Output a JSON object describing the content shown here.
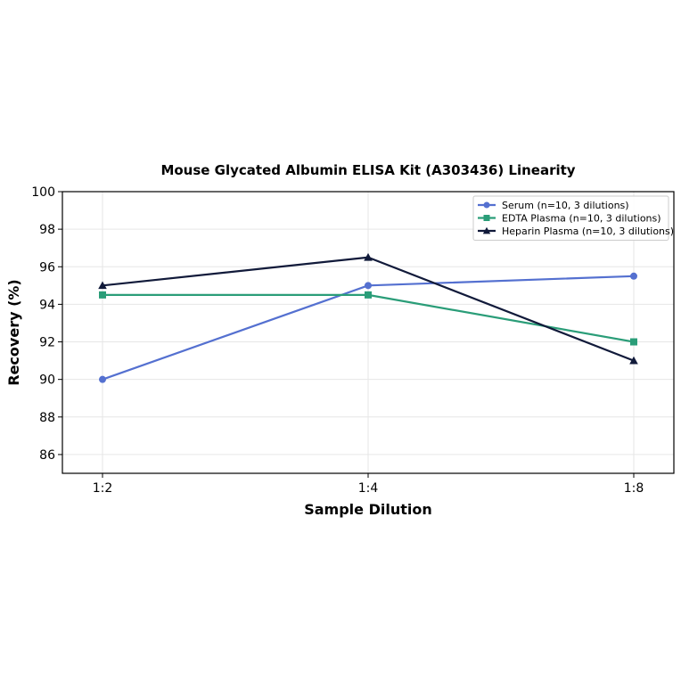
{
  "chart_data": {
    "type": "line",
    "title": "Mouse Glycated Albumin ELISA Kit (A303436) Linearity",
    "xlabel": "Sample Dilution",
    "ylabel": "Recovery (%)",
    "categories": [
      "1:2",
      "1:4",
      "1:8"
    ],
    "ylim": [
      85,
      100
    ],
    "yticks": [
      86,
      88,
      90,
      92,
      94,
      96,
      98,
      100
    ],
    "grid": true,
    "legend_position": "top-right",
    "series": [
      {
        "name": "Serum (n=10, 3 dilutions)",
        "values": [
          90.0,
          95.0,
          95.5
        ],
        "color": "#5470d0",
        "marker": "circle"
      },
      {
        "name": "EDTA Plasma (n=10, 3 dilutions)",
        "values": [
          94.5,
          94.5,
          92.0
        ],
        "color": "#2a9d78",
        "marker": "square"
      },
      {
        "name": "Heparin Plasma (n=10, 3 dilutions)",
        "values": [
          95.0,
          96.5,
          91.0
        ],
        "color": "#111a3a",
        "marker": "triangle"
      }
    ]
  }
}
